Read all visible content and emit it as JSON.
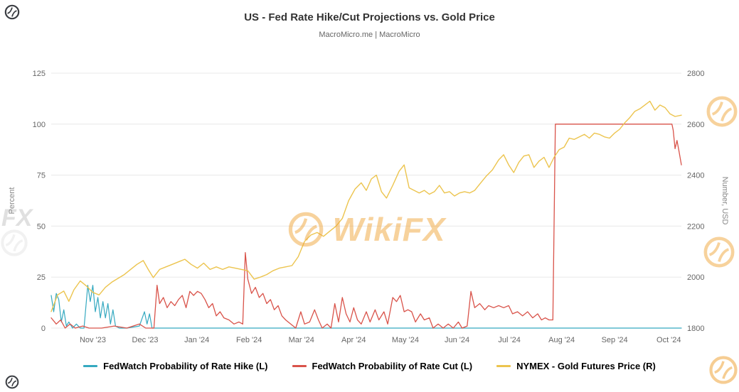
{
  "header": {
    "title": "US - Fed Rate Hike/Cut Projections vs. Gold Price",
    "subtitle": "MacroMicro.me | MacroMicro"
  },
  "watermark": {
    "brand": "WikiFX",
    "partial": "FX"
  },
  "chart_data": {
    "type": "line",
    "title": "US - Fed Rate Hike/Cut Projections vs. Gold Price",
    "subtitle": "MacroMicro.me | MacroMicro",
    "grid": "horizontal",
    "legend_position": "bottom",
    "left_axis": {
      "label": "Percent",
      "min": 0,
      "max": 125,
      "ticks": [
        0,
        25,
        50,
        75,
        100,
        125
      ]
    },
    "right_axis": {
      "label": "Number, USD",
      "min": 1800,
      "max": 2800,
      "ticks": [
        1800,
        2000,
        2200,
        2400,
        2600,
        2800
      ]
    },
    "x_axis": {
      "ticks": [
        {
          "label": "Nov '23",
          "f": 0.066
        },
        {
          "label": "Dec '23",
          "f": 0.149
        },
        {
          "label": "Jan '24",
          "f": 0.231
        },
        {
          "label": "Feb '24",
          "f": 0.314
        },
        {
          "label": "Mar '24",
          "f": 0.397
        },
        {
          "label": "Apr '24",
          "f": 0.48
        },
        {
          "label": "May '24",
          "f": 0.562
        },
        {
          "label": "Jun '24",
          "f": 0.644
        },
        {
          "label": "Jul '24",
          "f": 0.727
        },
        {
          "label": "Aug '24",
          "f": 0.81
        },
        {
          "label": "Sep '24",
          "f": 0.894
        },
        {
          "label": "Oct '24",
          "f": 0.98
        }
      ]
    },
    "series": [
      {
        "name": "FedWatch Probability of Rate Hike (L)",
        "axis": "left",
        "color": "#35a9c0",
        "width": 1.2,
        "points": [
          [
            0.0,
            16
          ],
          [
            0.004,
            8
          ],
          [
            0.008,
            17
          ],
          [
            0.012,
            14
          ],
          [
            0.016,
            3
          ],
          [
            0.02,
            9
          ],
          [
            0.024,
            1
          ],
          [
            0.028,
            3
          ],
          [
            0.034,
            0
          ],
          [
            0.04,
            2
          ],
          [
            0.046,
            0
          ],
          [
            0.052,
            0
          ],
          [
            0.058,
            21
          ],
          [
            0.062,
            13
          ],
          [
            0.066,
            21
          ],
          [
            0.07,
            8
          ],
          [
            0.074,
            15
          ],
          [
            0.078,
            5
          ],
          [
            0.082,
            13
          ],
          [
            0.086,
            5
          ],
          [
            0.09,
            12
          ],
          [
            0.094,
            2
          ],
          [
            0.098,
            9
          ],
          [
            0.102,
            1
          ],
          [
            0.108,
            0
          ],
          [
            0.12,
            0
          ],
          [
            0.14,
            1
          ],
          [
            0.148,
            8
          ],
          [
            0.152,
            2
          ],
          [
            0.156,
            7
          ],
          [
            0.16,
            0
          ],
          [
            0.17,
            0
          ],
          [
            1.0,
            0
          ]
        ]
      },
      {
        "name": "FedWatch Probability of Rate Cut (L)",
        "axis": "left",
        "color": "#d9534a",
        "width": 1.3,
        "points": [
          [
            0.0,
            5
          ],
          [
            0.008,
            2
          ],
          [
            0.015,
            4
          ],
          [
            0.022,
            0
          ],
          [
            0.03,
            2
          ],
          [
            0.038,
            0
          ],
          [
            0.05,
            1
          ],
          [
            0.06,
            0
          ],
          [
            0.08,
            0
          ],
          [
            0.1,
            1
          ],
          [
            0.12,
            0
          ],
          [
            0.14,
            2
          ],
          [
            0.15,
            0
          ],
          [
            0.163,
            0
          ],
          [
            0.168,
            21
          ],
          [
            0.172,
            12
          ],
          [
            0.178,
            15
          ],
          [
            0.184,
            10
          ],
          [
            0.19,
            13
          ],
          [
            0.196,
            11
          ],
          [
            0.202,
            14
          ],
          [
            0.208,
            16
          ],
          [
            0.214,
            10
          ],
          [
            0.22,
            18
          ],
          [
            0.226,
            16
          ],
          [
            0.232,
            18
          ],
          [
            0.238,
            17
          ],
          [
            0.244,
            14
          ],
          [
            0.25,
            10
          ],
          [
            0.256,
            12
          ],
          [
            0.262,
            6
          ],
          [
            0.268,
            8
          ],
          [
            0.274,
            5
          ],
          [
            0.282,
            4
          ],
          [
            0.29,
            2
          ],
          [
            0.298,
            3
          ],
          [
            0.304,
            2
          ],
          [
            0.308,
            37
          ],
          [
            0.312,
            24
          ],
          [
            0.318,
            17
          ],
          [
            0.324,
            20
          ],
          [
            0.33,
            15
          ],
          [
            0.336,
            17
          ],
          [
            0.342,
            12
          ],
          [
            0.348,
            14
          ],
          [
            0.354,
            9
          ],
          [
            0.36,
            11
          ],
          [
            0.366,
            6
          ],
          [
            0.372,
            4
          ],
          [
            0.38,
            2
          ],
          [
            0.388,
            0
          ],
          [
            0.396,
            8
          ],
          [
            0.402,
            2
          ],
          [
            0.41,
            3
          ],
          [
            0.418,
            9
          ],
          [
            0.424,
            4
          ],
          [
            0.43,
            0
          ],
          [
            0.438,
            2
          ],
          [
            0.444,
            0
          ],
          [
            0.45,
            12
          ],
          [
            0.456,
            3
          ],
          [
            0.462,
            15
          ],
          [
            0.468,
            7
          ],
          [
            0.474,
            3
          ],
          [
            0.48,
            10
          ],
          [
            0.486,
            4
          ],
          [
            0.492,
            2
          ],
          [
            0.5,
            8
          ],
          [
            0.506,
            3
          ],
          [
            0.514,
            9
          ],
          [
            0.52,
            4
          ],
          [
            0.528,
            8
          ],
          [
            0.534,
            2
          ],
          [
            0.542,
            15
          ],
          [
            0.548,
            13
          ],
          [
            0.554,
            16
          ],
          [
            0.56,
            8
          ],
          [
            0.566,
            9
          ],
          [
            0.572,
            8
          ],
          [
            0.578,
            3
          ],
          [
            0.586,
            7
          ],
          [
            0.592,
            4
          ],
          [
            0.6,
            5
          ],
          [
            0.606,
            0
          ],
          [
            0.614,
            2
          ],
          [
            0.622,
            0
          ],
          [
            0.63,
            2
          ],
          [
            0.638,
            0
          ],
          [
            0.646,
            3
          ],
          [
            0.652,
            0
          ],
          [
            0.66,
            1
          ],
          [
            0.666,
            18
          ],
          [
            0.672,
            10
          ],
          [
            0.68,
            12
          ],
          [
            0.688,
            9
          ],
          [
            0.694,
            11
          ],
          [
            0.702,
            10
          ],
          [
            0.71,
            11
          ],
          [
            0.718,
            10
          ],
          [
            0.726,
            11
          ],
          [
            0.732,
            7
          ],
          [
            0.74,
            8
          ],
          [
            0.748,
            6
          ],
          [
            0.756,
            8
          ],
          [
            0.764,
            5
          ],
          [
            0.772,
            7
          ],
          [
            0.778,
            4
          ],
          [
            0.784,
            5
          ],
          [
            0.79,
            4
          ],
          [
            0.796,
            4
          ],
          [
            0.8,
            100
          ],
          [
            0.985,
            100
          ],
          [
            0.987,
            97
          ],
          [
            0.99,
            88
          ],
          [
            0.993,
            92
          ],
          [
            0.996,
            87
          ],
          [
            1.0,
            80
          ]
        ]
      },
      {
        "name": "NYMEX - Gold Futures Price (R)",
        "axis": "right",
        "color": "#ecc44e",
        "width": 1.4,
        "points": [
          [
            0.0,
            1865
          ],
          [
            0.01,
            1930
          ],
          [
            0.02,
            1945
          ],
          [
            0.028,
            1905
          ],
          [
            0.036,
            1950
          ],
          [
            0.046,
            1985
          ],
          [
            0.056,
            1965
          ],
          [
            0.066,
            1940
          ],
          [
            0.076,
            1930
          ],
          [
            0.086,
            1960
          ],
          [
            0.096,
            1980
          ],
          [
            0.106,
            1995
          ],
          [
            0.116,
            2010
          ],
          [
            0.126,
            2030
          ],
          [
            0.136,
            2050
          ],
          [
            0.146,
            2065
          ],
          [
            0.154,
            2030
          ],
          [
            0.162,
            1998
          ],
          [
            0.172,
            2030
          ],
          [
            0.182,
            2040
          ],
          [
            0.192,
            2050
          ],
          [
            0.202,
            2060
          ],
          [
            0.212,
            2070
          ],
          [
            0.222,
            2050
          ],
          [
            0.232,
            2035
          ],
          [
            0.242,
            2055
          ],
          [
            0.252,
            2030
          ],
          [
            0.262,
            2040
          ],
          [
            0.272,
            2030
          ],
          [
            0.282,
            2040
          ],
          [
            0.292,
            2035
          ],
          [
            0.302,
            2030
          ],
          [
            0.312,
            2025
          ],
          [
            0.322,
            1992
          ],
          [
            0.332,
            2000
          ],
          [
            0.342,
            2010
          ],
          [
            0.352,
            2025
          ],
          [
            0.362,
            2035
          ],
          [
            0.372,
            2040
          ],
          [
            0.382,
            2045
          ],
          [
            0.392,
            2080
          ],
          [
            0.402,
            2140
          ],
          [
            0.412,
            2165
          ],
          [
            0.422,
            2175
          ],
          [
            0.432,
            2160
          ],
          [
            0.442,
            2180
          ],
          [
            0.452,
            2200
          ],
          [
            0.462,
            2230
          ],
          [
            0.472,
            2300
          ],
          [
            0.482,
            2345
          ],
          [
            0.492,
            2370
          ],
          [
            0.5,
            2340
          ],
          [
            0.508,
            2385
          ],
          [
            0.516,
            2400
          ],
          [
            0.524,
            2335
          ],
          [
            0.532,
            2310
          ],
          [
            0.542,
            2360
          ],
          [
            0.552,
            2415
          ],
          [
            0.56,
            2440
          ],
          [
            0.568,
            2350
          ],
          [
            0.576,
            2340
          ],
          [
            0.584,
            2330
          ],
          [
            0.592,
            2340
          ],
          [
            0.6,
            2325
          ],
          [
            0.608,
            2335
          ],
          [
            0.616,
            2360
          ],
          [
            0.624,
            2330
          ],
          [
            0.632,
            2335
          ],
          [
            0.64,
            2318
          ],
          [
            0.648,
            2330
          ],
          [
            0.656,
            2335
          ],
          [
            0.664,
            2330
          ],
          [
            0.672,
            2340
          ],
          [
            0.68,
            2365
          ],
          [
            0.69,
            2395
          ],
          [
            0.7,
            2420
          ],
          [
            0.71,
            2460
          ],
          [
            0.718,
            2480
          ],
          [
            0.726,
            2440
          ],
          [
            0.734,
            2410
          ],
          [
            0.742,
            2450
          ],
          [
            0.75,
            2475
          ],
          [
            0.758,
            2480
          ],
          [
            0.766,
            2430
          ],
          [
            0.774,
            2455
          ],
          [
            0.782,
            2470
          ],
          [
            0.79,
            2430
          ],
          [
            0.798,
            2470
          ],
          [
            0.806,
            2500
          ],
          [
            0.814,
            2510
          ],
          [
            0.822,
            2545
          ],
          [
            0.83,
            2540
          ],
          [
            0.838,
            2550
          ],
          [
            0.846,
            2560
          ],
          [
            0.854,
            2545
          ],
          [
            0.862,
            2565
          ],
          [
            0.87,
            2560
          ],
          [
            0.878,
            2550
          ],
          [
            0.886,
            2545
          ],
          [
            0.894,
            2565
          ],
          [
            0.902,
            2580
          ],
          [
            0.91,
            2605
          ],
          [
            0.918,
            2625
          ],
          [
            0.926,
            2650
          ],
          [
            0.934,
            2660
          ],
          [
            0.942,
            2675
          ],
          [
            0.95,
            2690
          ],
          [
            0.958,
            2655
          ],
          [
            0.966,
            2675
          ],
          [
            0.974,
            2665
          ],
          [
            0.982,
            2640
          ],
          [
            0.99,
            2630
          ],
          [
            1.0,
            2635
          ]
        ]
      }
    ]
  }
}
